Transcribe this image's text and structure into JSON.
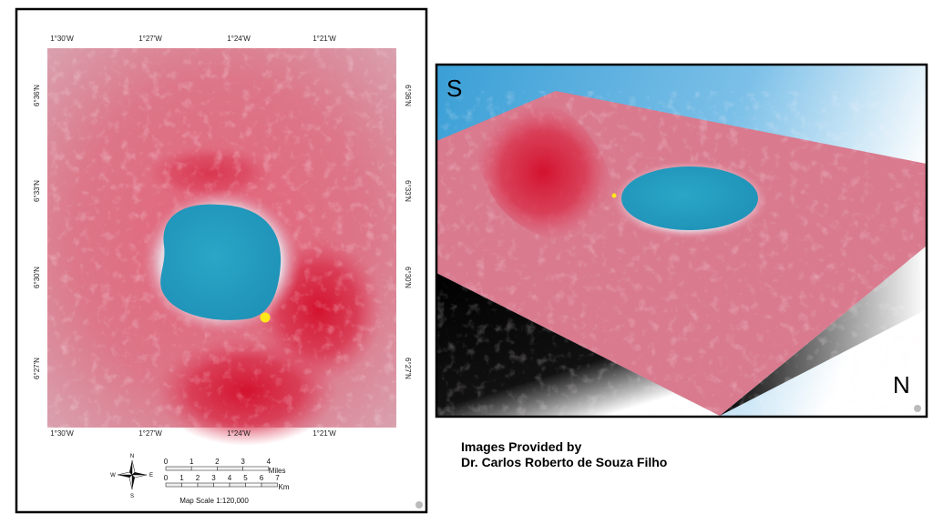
{
  "map_panel": {
    "lon_labels": [
      "1°30'W",
      "1°27'W",
      "1°24'W",
      "1°21'W"
    ],
    "lat_labels": [
      "6°36'N",
      "6°33'N",
      "6°30'N",
      "6°27'N"
    ],
    "compass": {
      "n": "N",
      "s": "S",
      "e": "E",
      "w": "W"
    },
    "scale": {
      "miles_ticks": [
        0,
        1,
        2,
        3,
        4
      ],
      "miles_label": "Miles",
      "km_ticks": [
        0,
        1,
        2,
        3,
        4,
        5,
        6,
        7
      ],
      "km_label": "Km",
      "text": "Map Scale 1:120,000"
    }
  },
  "view_3d": {
    "south": "S",
    "north": "N"
  },
  "credit": {
    "line1": "Images Provided by",
    "line2": "Dr. Carlos Roberto de Souza Filho"
  }
}
